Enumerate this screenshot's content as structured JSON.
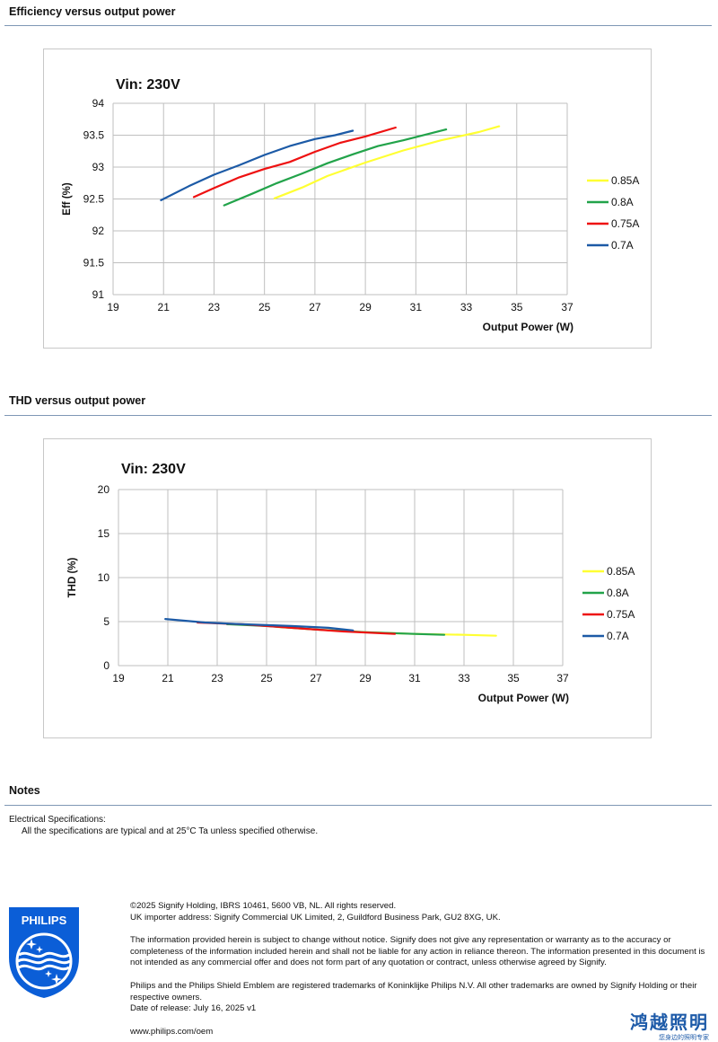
{
  "sections": {
    "efficiency_title": "Efficiency versus output power",
    "thd_title": "THD versus output power",
    "notes_title": "Notes"
  },
  "notes": {
    "heading": "Electrical Specifications:",
    "line": "All the specifications are typical and at 25°C Ta unless specified otherwise."
  },
  "footer": {
    "copyright": "©2025 Signify Holding, IBRS 10461, 5600 VB, NL. All rights reserved.",
    "importer": "UK importer address: Signify Commercial UK Limited, 2, Guildford Business Park, GU2 8XG, UK.",
    "disclaimer": "The information provided herein is subject to change without notice. Signify does not give any representation or warranty as to the accuracy or completeness of the information included herein and shall not be liable for any action in reliance thereon. The information presented in this document is not intended as any commercial offer and does not form part of any quotation or contract, unless otherwise agreed by Signify.",
    "trademarks": "Philips and the Philips Shield Emblem are registered trademarks of Koninklijke Philips N.V. All other trademarks are owned by Signify Holding or their respective owners.",
    "release": "Date of release: July 16, 2025 v1",
    "website": "www.philips.com/oem"
  },
  "logos": {
    "philips": "PHILIPS",
    "cn_main": "鸿越照明",
    "cn_sub": "您身边的照明专家"
  },
  "colors": {
    "0.85A": "#ffff33",
    "0.8A": "#22a34a",
    "0.75A": "#ee1111",
    "0.7A": "#1c5aa6",
    "grid": "#bfbfbf",
    "rule": "#7f97b5",
    "philips_blue": "#0b5ed7"
  },
  "chart_data": [
    {
      "type": "line",
      "title": "Vin: 230V",
      "xlabel": "Output Power (W)",
      "ylabel": "Eff  (%)",
      "xlim": [
        19,
        37
      ],
      "ylim": [
        91,
        94
      ],
      "xticks": [
        "19",
        "21",
        "23",
        "25",
        "27",
        "29",
        "31",
        "33",
        "35",
        "37"
      ],
      "yticks": [
        "91",
        "91.5",
        "92",
        "92.5",
        "93",
        "93.5",
        "94"
      ],
      "grid": true,
      "legend": "right",
      "series": [
        {
          "name": "0.85A",
          "points": [
            [
              25.4,
              92.51
            ],
            [
              26.5,
              92.68
            ],
            [
              27.5,
              92.86
            ],
            [
              29.0,
              93.07
            ],
            [
              30.5,
              93.26
            ],
            [
              32.0,
              93.42
            ],
            [
              33.5,
              93.55
            ],
            [
              34.3,
              93.64
            ]
          ]
        },
        {
          "name": "0.8A",
          "points": [
            [
              23.4,
              92.4
            ],
            [
              24.5,
              92.58
            ],
            [
              25.5,
              92.75
            ],
            [
              26.5,
              92.9
            ],
            [
              27.5,
              93.06
            ],
            [
              28.5,
              93.2
            ],
            [
              29.5,
              93.33
            ],
            [
              30.5,
              93.42
            ],
            [
              31.5,
              93.52
            ],
            [
              32.2,
              93.59
            ]
          ]
        },
        {
          "name": "0.75A",
          "points": [
            [
              22.2,
              92.53
            ],
            [
              23.0,
              92.67
            ],
            [
              24.0,
              92.84
            ],
            [
              25.0,
              92.97
            ],
            [
              26.0,
              93.08
            ],
            [
              27.0,
              93.24
            ],
            [
              28.0,
              93.38
            ],
            [
              29.0,
              93.48
            ],
            [
              30.2,
              93.62
            ]
          ]
        },
        {
          "name": "0.7A",
          "points": [
            [
              20.9,
              92.48
            ],
            [
              22.0,
              92.7
            ],
            [
              23.0,
              92.88
            ],
            [
              24.0,
              93.03
            ],
            [
              25.0,
              93.19
            ],
            [
              26.0,
              93.33
            ],
            [
              27.0,
              93.44
            ],
            [
              27.8,
              93.5
            ],
            [
              28.5,
              93.57
            ]
          ]
        }
      ]
    },
    {
      "type": "line",
      "title": "Vin: 230V",
      "xlabel": "Output Power (W)",
      "ylabel": "THD  (%)",
      "xlim": [
        19,
        37
      ],
      "ylim": [
        0,
        20
      ],
      "xticks": [
        "19",
        "21",
        "23",
        "25",
        "27",
        "29",
        "31",
        "33",
        "35",
        "37"
      ],
      "yticks": [
        "0",
        "5",
        "10",
        "15",
        "20"
      ],
      "grid": true,
      "legend": "right",
      "series": [
        {
          "name": "0.85A",
          "points": [
            [
              25.4,
              4.4
            ],
            [
              27.0,
              4.1
            ],
            [
              29.0,
              3.8
            ],
            [
              31.0,
              3.6
            ],
            [
              33.0,
              3.5
            ],
            [
              34.3,
              3.4
            ]
          ]
        },
        {
          "name": "0.8A",
          "points": [
            [
              23.4,
              4.7
            ],
            [
              25.0,
              4.5
            ],
            [
              27.0,
              4.1
            ],
            [
              29.0,
              3.8
            ],
            [
              31.0,
              3.6
            ],
            [
              32.2,
              3.5
            ]
          ]
        },
        {
          "name": "0.75A",
          "points": [
            [
              22.2,
              4.9
            ],
            [
              24.0,
              4.7
            ],
            [
              26.0,
              4.3
            ],
            [
              28.0,
              3.9
            ],
            [
              30.2,
              3.6
            ]
          ]
        },
        {
          "name": "0.7A",
          "points": [
            [
              20.9,
              5.3
            ],
            [
              22.5,
              4.9
            ],
            [
              24.0,
              4.7
            ],
            [
              26.0,
              4.5
            ],
            [
              27.5,
              4.3
            ],
            [
              28.5,
              4.0
            ]
          ]
        }
      ]
    }
  ]
}
